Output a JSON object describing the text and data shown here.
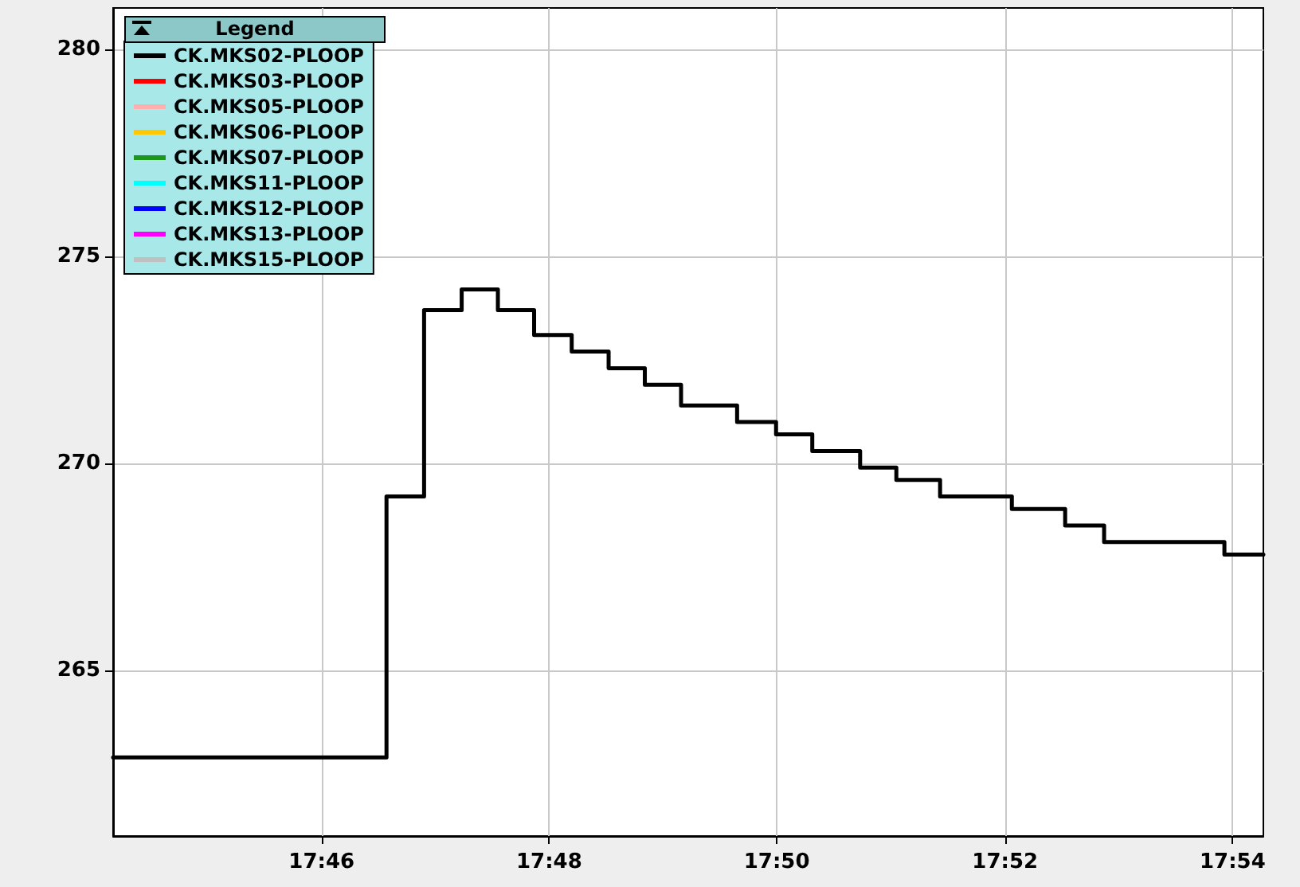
{
  "chart_data": {
    "type": "step",
    "legend_title": "Legend",
    "legend": "top left",
    "grid": true,
    "marker": "none",
    "line_style": "solid",
    "xlim": [
      17.7362,
      17.9045
    ],
    "xticks": [
      {
        "value": 17.7667,
        "label": "17:46"
      },
      {
        "value": 17.8,
        "label": "17:48"
      },
      {
        "value": 17.8333,
        "label": "17:50"
      },
      {
        "value": 17.8667,
        "label": "17:52"
      },
      {
        "value": 17.9,
        "label": "17:54"
      }
    ],
    "ylim": [
      261,
      281
    ],
    "yticks": [
      265,
      270,
      275,
      280
    ],
    "series": [
      {
        "name": "CK.MKS02-PLOOP",
        "color": "#000000",
        "x": [
          17.7362,
          17.7762,
          17.7817,
          17.7872,
          17.7925,
          17.7978,
          17.8033,
          17.8087,
          17.814,
          17.8193,
          17.8275,
          17.8332,
          17.8385,
          17.8455,
          17.8508,
          17.8572,
          17.8677,
          17.8755,
          17.8812,
          17.8988,
          17.9045
        ],
        "values": [
          262.9,
          269.2,
          273.7,
          274.2,
          273.7,
          273.1,
          272.7,
          272.3,
          271.9,
          271.4,
          271.0,
          270.7,
          270.3,
          269.9,
          269.6,
          269.2,
          268.9,
          268.5,
          268.1,
          267.8,
          267.8
        ]
      },
      {
        "name": "CK.MKS03-PLOOP",
        "color": "#ff0000"
      },
      {
        "name": "CK.MKS05-PLOOP",
        "color": "#ffafaf"
      },
      {
        "name": "CK.MKS06-PLOOP",
        "color": "#ffc800"
      },
      {
        "name": "CK.MKS07-PLOOP",
        "color": "#1e961e"
      },
      {
        "name": "CK.MKS11-PLOOP",
        "color": "#00ffff"
      },
      {
        "name": "CK.MKS12-PLOOP",
        "color": "#0000ff"
      },
      {
        "name": "CK.MKS13-PLOOP",
        "color": "#ff00ff"
      },
      {
        "name": "CK.MKS15-PLOOP",
        "color": "#c0c0c0"
      }
    ]
  }
}
